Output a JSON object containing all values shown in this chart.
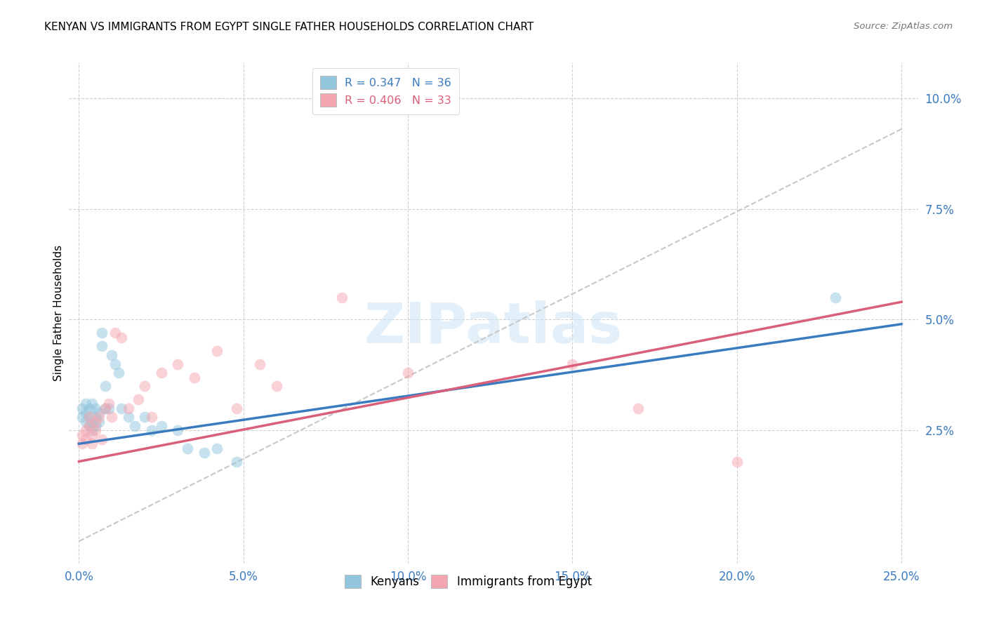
{
  "title": "KENYAN VS IMMIGRANTS FROM EGYPT SINGLE FATHER HOUSEHOLDS CORRELATION CHART",
  "source": "Source: ZipAtlas.com",
  "ylabel_label": "Single Father Households",
  "xlim": [
    -0.003,
    0.255
  ],
  "ylim": [
    -0.005,
    0.108
  ],
  "xticks": [
    0.0,
    0.05,
    0.1,
    0.15,
    0.2,
    0.25
  ],
  "yticks": [
    0.025,
    0.05,
    0.075,
    0.1
  ],
  "ytick_labels": [
    "2.5%",
    "5.0%",
    "7.5%",
    "10.0%"
  ],
  "xtick_labels": [
    "0.0%",
    "5.0%",
    "10.0%",
    "15.0%",
    "20.0%",
    "25.0%"
  ],
  "watermark": "ZIPatlas",
  "blue_color": "#92c5de",
  "pink_color": "#f4a6b0",
  "blue_line_color": "#3a7bbf",
  "pink_line_color": "#d95f7a",
  "dashed_line_color": "#c8c8c8",
  "kenyan_x": [
    0.001,
    0.001,
    0.002,
    0.002,
    0.002,
    0.003,
    0.003,
    0.003,
    0.004,
    0.004,
    0.004,
    0.005,
    0.005,
    0.005,
    0.006,
    0.006,
    0.007,
    0.007,
    0.008,
    0.008,
    0.009,
    0.01,
    0.011,
    0.012,
    0.013,
    0.015,
    0.017,
    0.02,
    0.022,
    0.025,
    0.03,
    0.033,
    0.038,
    0.042,
    0.048,
    0.23
  ],
  "kenyan_y": [
    0.028,
    0.03,
    0.027,
    0.029,
    0.031,
    0.026,
    0.028,
    0.03,
    0.025,
    0.027,
    0.031,
    0.028,
    0.03,
    0.026,
    0.029,
    0.027,
    0.047,
    0.044,
    0.035,
    0.03,
    0.03,
    0.042,
    0.04,
    0.038,
    0.03,
    0.028,
    0.026,
    0.028,
    0.025,
    0.026,
    0.025,
    0.021,
    0.02,
    0.021,
    0.018,
    0.055
  ],
  "egypt_x": [
    0.001,
    0.001,
    0.002,
    0.002,
    0.003,
    0.003,
    0.004,
    0.004,
    0.005,
    0.005,
    0.006,
    0.007,
    0.008,
    0.009,
    0.01,
    0.011,
    0.013,
    0.015,
    0.018,
    0.02,
    0.022,
    0.025,
    0.03,
    0.035,
    0.042,
    0.048,
    0.055,
    0.06,
    0.08,
    0.1,
    0.15,
    0.17,
    0.2
  ],
  "egypt_y": [
    0.024,
    0.022,
    0.025,
    0.023,
    0.026,
    0.028,
    0.022,
    0.024,
    0.027,
    0.025,
    0.028,
    0.023,
    0.03,
    0.031,
    0.028,
    0.047,
    0.046,
    0.03,
    0.032,
    0.035,
    0.028,
    0.038,
    0.04,
    0.037,
    0.043,
    0.03,
    0.04,
    0.035,
    0.055,
    0.038,
    0.04,
    0.03,
    0.018
  ],
  "blue_line_x0": 0.0,
  "blue_line_y0": 0.022,
  "blue_line_x1": 0.25,
  "blue_line_y1": 0.049,
  "pink_line_x0": 0.0,
  "pink_line_y0": 0.018,
  "pink_line_x1": 0.25,
  "pink_line_y1": 0.054,
  "dash_line_x0": 0.0,
  "dash_line_y0": 0.0,
  "dash_line_x1": 0.25,
  "dash_line_y1": 0.093
}
